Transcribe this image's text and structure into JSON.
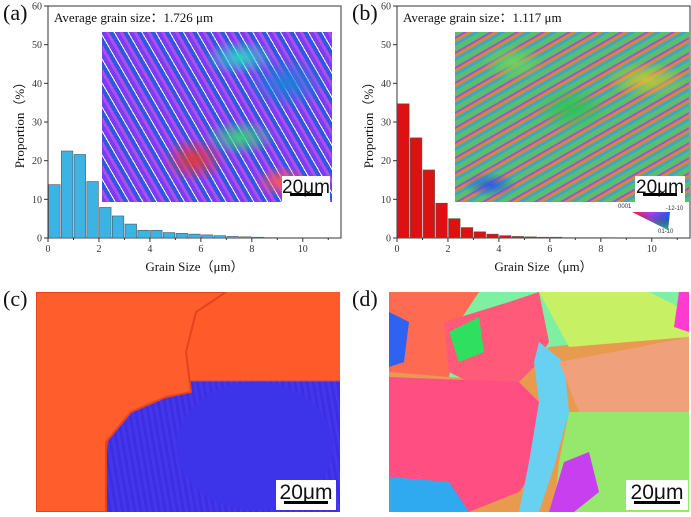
{
  "panels": {
    "a": "(a)",
    "b": "(b)",
    "c": "(c)",
    "d": "(d)"
  },
  "scale_bar": "20μm",
  "ipf_legend": {
    "a": "0001",
    "b": "-12-10",
    "c": "01-10"
  },
  "chart_data": [
    {
      "type": "bar",
      "title": "Average grain size：1.726 μm",
      "xlabel": "Grain Size（μm）",
      "ylabel": "Proportion（%）",
      "xlim": [
        0,
        11.5
      ],
      "ylim": [
        0,
        60
      ],
      "xticks": [
        0,
        2,
        4,
        6,
        8,
        10
      ],
      "yticks": [
        0,
        10,
        20,
        30,
        40,
        50,
        60
      ],
      "bin_width": 0.5,
      "x": [
        0.25,
        0.75,
        1.25,
        1.75,
        2.25,
        2.75,
        3.25,
        3.75,
        4.25,
        4.75,
        5.25,
        5.75,
        6.25,
        6.75,
        7.25,
        7.75,
        8.25,
        8.75
      ],
      "values": [
        13.8,
        22.5,
        21.6,
        14.6,
        7.9,
        5.7,
        3.6,
        2.0,
        2.0,
        1.4,
        1.2,
        1.0,
        0.8,
        0.6,
        0.4,
        0.3,
        0.2,
        0.1
      ],
      "color": "#3bb4e5"
    },
    {
      "type": "bar",
      "title": "Average grain size：1.117 μm",
      "xlabel": "Grain Size（μm）",
      "ylabel": "Proportion（%）",
      "xlim": [
        0,
        11.5
      ],
      "ylim": [
        0,
        60
      ],
      "xticks": [
        0,
        2,
        4,
        6,
        8,
        10
      ],
      "yticks": [
        0,
        10,
        20,
        30,
        40,
        50,
        60
      ],
      "bin_width": 0.5,
      "x": [
        0.25,
        0.75,
        1.25,
        1.75,
        2.25,
        2.75,
        3.25,
        3.75,
        4.25,
        4.75,
        5.25,
        5.75,
        6.25,
        6.75,
        7.25,
        7.75,
        8.25
      ],
      "values": [
        34.7,
        25.9,
        17.6,
        9.0,
        5.0,
        2.7,
        1.6,
        1.0,
        0.6,
        0.4,
        0.3,
        0.2,
        0.2,
        0.1,
        0.1,
        0.1,
        0.1
      ],
      "color": "#dd1111"
    }
  ]
}
